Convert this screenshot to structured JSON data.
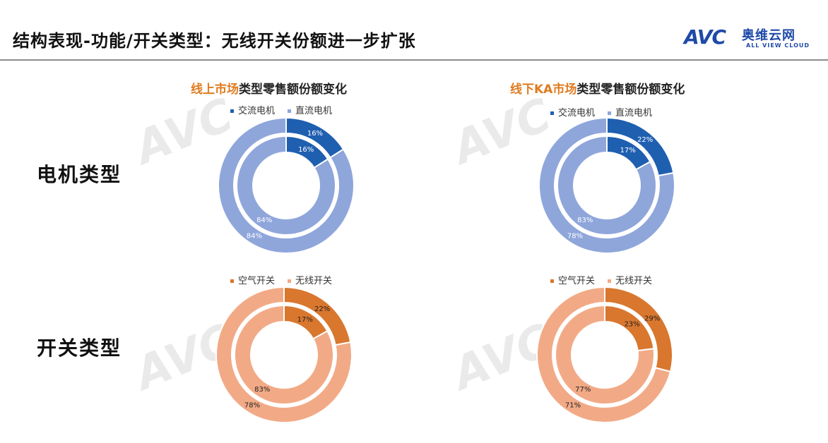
{
  "header": {
    "title": "结构表现-功能/开关类型：无线开关份额进一步扩张",
    "logo_mark": "AVC",
    "logo_cn": "奥维云网",
    "logo_en": "ALL VIEW CLOUD"
  },
  "rows": {
    "motor": "电机类型",
    "switch": "开关类型"
  },
  "titles": {
    "online": {
      "hl": "线上市场",
      "rest": "类型零售额份额变化"
    },
    "offline": {
      "hl": "线下KA市场",
      "rest": "类型零售额份额变化"
    }
  },
  "legends": {
    "motor": [
      {
        "label": "交流电机",
        "color": "#1f5fb0"
      },
      {
        "label": "直流电机",
        "color": "#8fa6db"
      }
    ],
    "switch": [
      {
        "label": "空气开关",
        "color": "#d9772e"
      },
      {
        "label": "无线开关",
        "color": "#f2aa86"
      }
    ]
  },
  "chart_data": [
    {
      "type": "pie",
      "id": "online-motor",
      "series": [
        {
          "ring": "outer",
          "values": [
            16,
            84
          ],
          "labels": [
            "16%",
            "84%"
          ]
        },
        {
          "ring": "inner",
          "values": [
            16,
            84
          ],
          "labels": [
            "16%",
            "84%"
          ]
        }
      ],
      "categories": [
        "交流电机",
        "直流电机"
      ],
      "colors": [
        "#1f5fb0",
        "#8fa6db"
      ],
      "label_colors": [
        "#ffffff",
        "#ffffff"
      ]
    },
    {
      "type": "pie",
      "id": "offline-motor",
      "series": [
        {
          "ring": "outer",
          "values": [
            22,
            78
          ],
          "labels": [
            "22%",
            "78%"
          ]
        },
        {
          "ring": "inner",
          "values": [
            17,
            83
          ],
          "labels": [
            "17%",
            "83%"
          ]
        }
      ],
      "categories": [
        "交流电机",
        "直流电机"
      ],
      "colors": [
        "#1f5fb0",
        "#8fa6db"
      ],
      "label_colors": [
        "#ffffff",
        "#ffffff"
      ]
    },
    {
      "type": "pie",
      "id": "online-switch",
      "series": [
        {
          "ring": "outer",
          "values": [
            22,
            78
          ],
          "labels": [
            "22%",
            "78%"
          ]
        },
        {
          "ring": "inner",
          "values": [
            17,
            83
          ],
          "labels": [
            "17%",
            "83%"
          ]
        }
      ],
      "categories": [
        "空气开关",
        "无线开关"
      ],
      "colors": [
        "#d9772e",
        "#f2aa86"
      ],
      "label_colors": [
        "#222222",
        "#222222"
      ]
    },
    {
      "type": "pie",
      "id": "offline-switch",
      "series": [
        {
          "ring": "outer",
          "values": [
            29,
            71
          ],
          "labels": [
            "29%",
            "71%"
          ]
        },
        {
          "ring": "inner",
          "values": [
            23,
            77
          ],
          "labels": [
            "23%",
            "77%"
          ]
        }
      ],
      "categories": [
        "空气开关",
        "无线开关"
      ],
      "colors": [
        "#d9772e",
        "#f2aa86"
      ],
      "label_colors": [
        "#222222",
        "#222222"
      ]
    }
  ]
}
